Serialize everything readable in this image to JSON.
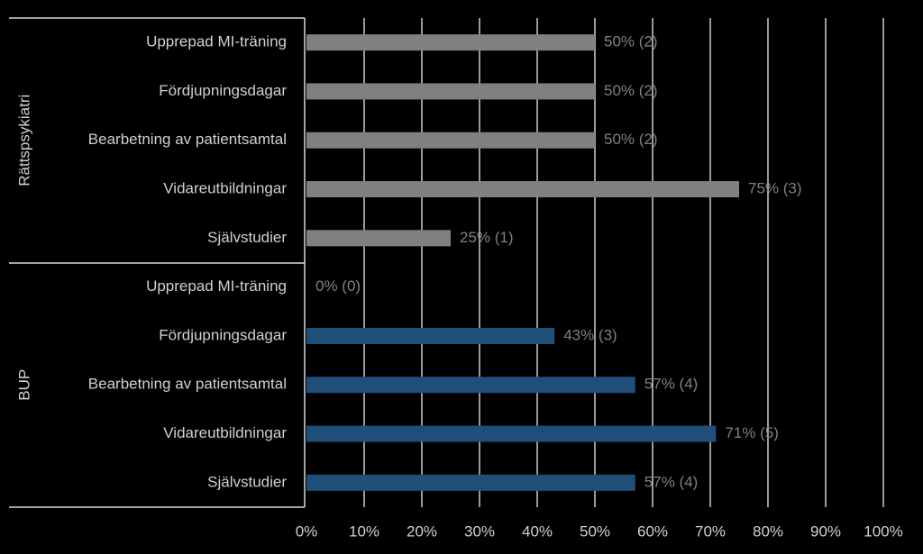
{
  "chart_data": {
    "type": "grouped-hbar",
    "groups": [
      {
        "name": "Rättspsykiatri",
        "color": "#808080",
        "categories": [
          "Upprepad MI-träning",
          "Fördjupningsdagar",
          "Bearbetning av patientsamtal",
          "Vidareutbildningar",
          "Självstudier"
        ],
        "values": [
          50,
          50,
          50,
          75,
          25
        ],
        "value_labels": [
          "50% (2)",
          "50% (2)",
          "50% (2)",
          "75% (3)",
          "25% (1)"
        ]
      },
      {
        "name": "BUP",
        "color": "#1f4e79",
        "categories": [
          "Upprepad MI-träning",
          "Fördjupningsdagar",
          "Bearbetning av patientsamtal",
          "Vidareutbildningar",
          "Självstudier"
        ],
        "values": [
          0,
          43,
          57,
          71,
          57
        ],
        "value_labels": [
          "0% (0)",
          "43% (3)",
          "57% (4)",
          "71% (5)",
          "57% (4)"
        ]
      }
    ],
    "xlim": [
      0,
      100
    ],
    "xticks": [
      {
        "value": 0,
        "label": "0%"
      },
      {
        "value": 10,
        "label": "10%"
      },
      {
        "value": 20,
        "label": "20%"
      },
      {
        "value": 30,
        "label": "30%"
      },
      {
        "value": 40,
        "label": "40%"
      },
      {
        "value": 50,
        "label": "50%"
      },
      {
        "value": 60,
        "label": "60%"
      },
      {
        "value": 70,
        "label": "70%"
      },
      {
        "value": 80,
        "label": "80%"
      },
      {
        "value": 90,
        "label": "90%"
      },
      {
        "value": 100,
        "label": "100%"
      }
    ],
    "grid": true
  }
}
